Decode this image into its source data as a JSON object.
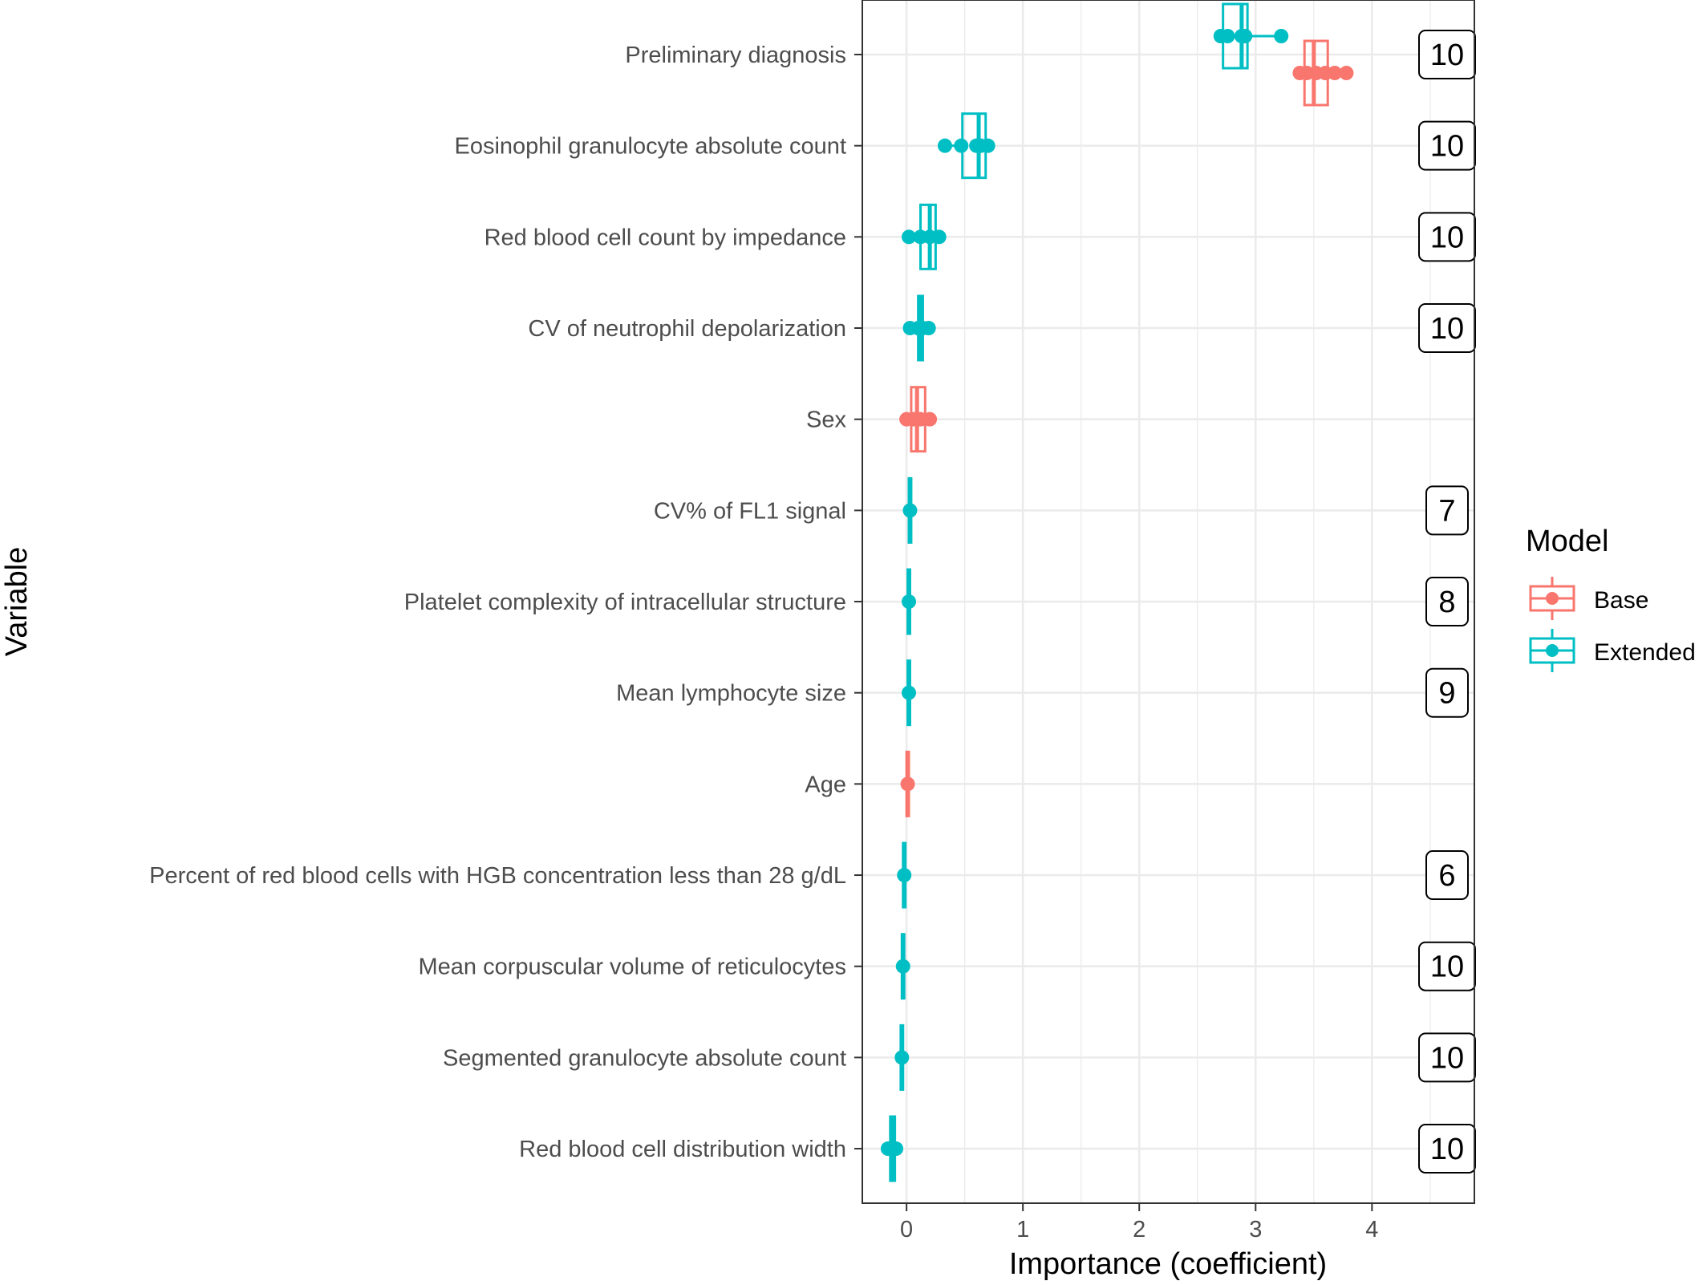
{
  "chart_data": {
    "type": "boxplot",
    "xlabel": "Importance (coefficient)",
    "ylabel": "Variable",
    "xlim": [
      -0.38,
      4.88
    ],
    "xticks": [
      0,
      1,
      2,
      3,
      4
    ],
    "grid": true,
    "legend": {
      "title": "Model",
      "position": "right",
      "entries": [
        {
          "name": "Base",
          "color": "#F8766D"
        },
        {
          "name": "Extended",
          "color": "#00BFC4"
        }
      ]
    },
    "categories": [
      "Preliminary diagnosis",
      "Eosinophil granulocyte absolute count",
      "Red blood cell count by impedance",
      "CV of neutrophil depolarization",
      "Sex",
      "CV% of FL1 signal",
      "Platelet complexity of intracellular structure",
      "Mean lymphocyte size",
      "Age",
      "Percent of red blood cells with HGB concentration less than 28 g/dL",
      "Mean corpuscular volume of reticulocytes",
      "Segmented granulocyte absolute count",
      "Red blood cell distribution width"
    ],
    "boxes": [
      {
        "variable": "Preliminary diagnosis",
        "model": "Extended",
        "q1": 2.72,
        "median": 2.88,
        "q3": 2.93,
        "whisker_low": 2.68,
        "whisker_high": 3.22,
        "points": [
          2.7,
          2.76,
          2.88,
          2.91,
          3.22
        ]
      },
      {
        "variable": "Preliminary diagnosis",
        "model": "Base",
        "q1": 3.42,
        "median": 3.5,
        "q3": 3.62,
        "whisker_low": 3.38,
        "whisker_high": 3.78,
        "points": [
          3.38,
          3.44,
          3.52,
          3.6,
          3.68,
          3.78
        ]
      },
      {
        "variable": "Eosinophil granulocyte absolute count",
        "model": "Extended",
        "q1": 0.48,
        "median": 0.62,
        "q3": 0.68,
        "whisker_low": 0.32,
        "whisker_high": 0.72,
        "points": [
          0.33,
          0.47,
          0.6,
          0.64,
          0.7
        ]
      },
      {
        "variable": "Red blood cell count by impedance",
        "model": "Extended",
        "q1": 0.12,
        "median": 0.2,
        "q3": 0.25,
        "whisker_low": 0.0,
        "whisker_high": 0.3,
        "points": [
          0.02,
          0.12,
          0.2,
          0.28
        ]
      },
      {
        "variable": "CV of neutrophil depolarization",
        "model": "Extended",
        "q1": 0.1,
        "median": 0.12,
        "q3": 0.14,
        "whisker_low": 0.02,
        "whisker_high": 0.2,
        "points": [
          0.03,
          0.1,
          0.14,
          0.19
        ]
      },
      {
        "variable": "Sex",
        "model": "Base",
        "q1": 0.04,
        "median": 0.09,
        "q3": 0.16,
        "whisker_low": -0.02,
        "whisker_high": 0.22,
        "points": [
          0.0,
          0.06,
          0.12,
          0.2
        ]
      },
      {
        "variable": "CV% of FL1 signal",
        "model": "Extended",
        "q1": 0.02,
        "median": 0.03,
        "q3": 0.04,
        "whisker_low": 0.0,
        "whisker_high": 0.06,
        "points": [
          0.03
        ]
      },
      {
        "variable": "Platelet complexity of intracellular structure",
        "model": "Extended",
        "q1": 0.01,
        "median": 0.02,
        "q3": 0.03,
        "whisker_low": -0.01,
        "whisker_high": 0.05,
        "points": [
          0.02
        ]
      },
      {
        "variable": "Mean lymphocyte size",
        "model": "Extended",
        "q1": 0.01,
        "median": 0.02,
        "q3": 0.03,
        "whisker_low": -0.01,
        "whisker_high": 0.05,
        "points": [
          0.02
        ]
      },
      {
        "variable": "Age",
        "model": "Base",
        "q1": 0.0,
        "median": 0.01,
        "q3": 0.02,
        "whisker_low": -0.02,
        "whisker_high": 0.04,
        "points": [
          0.01
        ]
      },
      {
        "variable": "Percent of red blood cells with HGB concentration less than 28 g/dL",
        "model": "Extended",
        "q1": -0.03,
        "median": -0.02,
        "q3": -0.01,
        "whisker_low": -0.05,
        "whisker_high": 0.01,
        "points": [
          -0.02
        ]
      },
      {
        "variable": "Mean corpuscular volume of reticulocytes",
        "model": "Extended",
        "q1": -0.04,
        "median": -0.03,
        "q3": -0.02,
        "whisker_low": -0.06,
        "whisker_high": 0.0,
        "points": [
          -0.03
        ]
      },
      {
        "variable": "Segmented granulocyte absolute count",
        "model": "Extended",
        "q1": -0.05,
        "median": -0.04,
        "q3": -0.03,
        "whisker_low": -0.07,
        "whisker_high": -0.01,
        "points": [
          -0.04
        ]
      },
      {
        "variable": "Red blood cell distribution width",
        "model": "Extended",
        "q1": -0.14,
        "median": -0.12,
        "q3": -0.1,
        "whisker_low": -0.18,
        "whisker_high": -0.06,
        "points": [
          -0.16,
          -0.12,
          -0.09
        ]
      }
    ],
    "counts": [
      {
        "variable": "Preliminary diagnosis",
        "label": "10"
      },
      {
        "variable": "Eosinophil granulocyte absolute count",
        "label": "10"
      },
      {
        "variable": "Red blood cell count by impedance",
        "label": "10"
      },
      {
        "variable": "CV of neutrophil depolarization",
        "label": "10"
      },
      {
        "variable": "CV% of FL1 signal",
        "label": "7"
      },
      {
        "variable": "Platelet complexity of intracellular structure",
        "label": "8"
      },
      {
        "variable": "Mean lymphocyte size",
        "label": "9"
      },
      {
        "variable": "Percent of red blood cells with HGB concentration less than 28 g/dL",
        "label": "6"
      },
      {
        "variable": "Mean corpuscular volume of reticulocytes",
        "label": "10"
      },
      {
        "variable": "Segmented granulocyte absolute count",
        "label": "10"
      },
      {
        "variable": "Red blood cell distribution width",
        "label": "10"
      }
    ]
  }
}
